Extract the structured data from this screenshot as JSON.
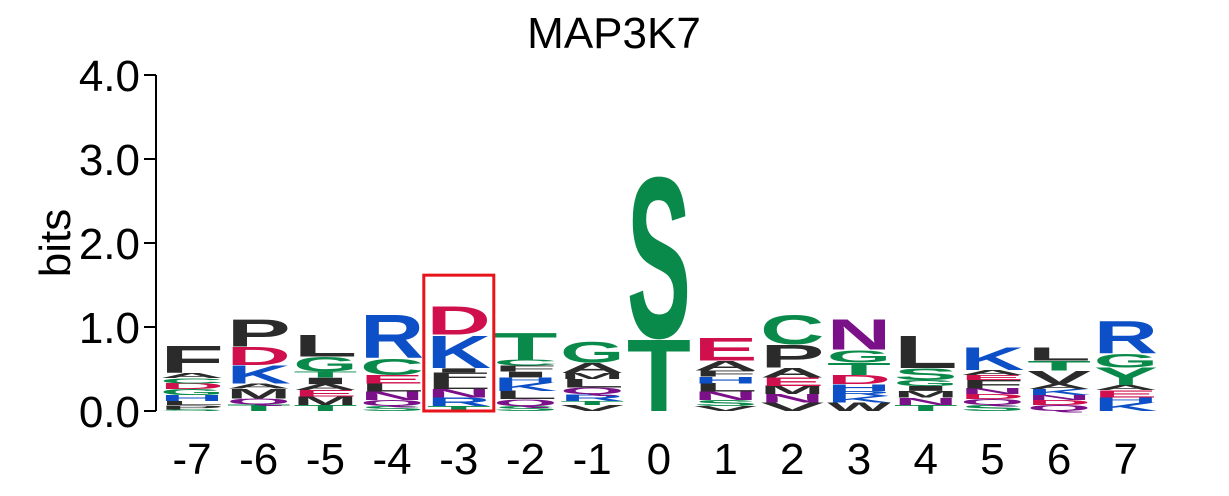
{
  "chart_data": {
    "type": "sequence-logo",
    "title": "MAP3K7",
    "ylabel": "bits",
    "ylim": [
      0,
      4.0
    ],
    "yticks": [
      {
        "value": 0,
        "label": "0.0"
      },
      {
        "value": 1,
        "label": "1.0"
      },
      {
        "value": 2,
        "label": "2.0"
      },
      {
        "value": 3,
        "label": "3.0"
      },
      {
        "value": 4,
        "label": "4.0"
      }
    ],
    "highlight_position": "-3",
    "highlight_color": "#e8141c",
    "colors": {
      "A": "#2b2b2b",
      "F": "#2b2b2b",
      "I": "#2b2b2b",
      "L": "#2b2b2b",
      "M": "#2b2b2b",
      "P": "#2b2b2b",
      "V": "#2b2b2b",
      "W": "#2b2b2b",
      "C": "#0a8a4a",
      "G": "#0a8a4a",
      "S": "#0a8a4a",
      "T": "#0a8a4a",
      "Y": "#0a8a4a",
      "D": "#d0104c",
      "E": "#d0104c",
      "H": "#0c4fc6",
      "K": "#0c4fc6",
      "R": "#0c4fc6",
      "N": "#7b1189",
      "Q": "#7b1189"
    },
    "positions": [
      {
        "label": "-7",
        "stack": [
          [
            "S",
            0.02
          ],
          [
            "P",
            0.05
          ],
          [
            "L",
            0.05
          ],
          [
            "H",
            0.07
          ],
          [
            "G",
            0.07
          ],
          [
            "D",
            0.07
          ],
          [
            "C",
            0.06
          ],
          [
            "A",
            0.06
          ],
          [
            "F",
            0.33
          ]
        ]
      },
      {
        "label": "-6",
        "stack": [
          [
            "T",
            0.08
          ],
          [
            "Q",
            0.07
          ],
          [
            "M",
            0.12
          ],
          [
            "A",
            0.06
          ],
          [
            "K",
            0.22
          ],
          [
            "D",
            0.22
          ],
          [
            "P",
            0.33
          ]
        ]
      },
      {
        "label": "-5",
        "stack": [
          [
            "T",
            0.07
          ],
          [
            "M",
            0.1
          ],
          [
            "E",
            0.08
          ],
          [
            "A",
            0.07
          ],
          [
            "I",
            0.08
          ],
          [
            "T",
            0.07
          ],
          [
            "G",
            0.18
          ],
          [
            "L",
            0.27
          ]
        ]
      },
      {
        "label": "-4",
        "stack": [
          [
            "S",
            0.06
          ],
          [
            "Q",
            0.07
          ],
          [
            "N",
            0.1
          ],
          [
            "L",
            0.1
          ],
          [
            "E",
            0.1
          ],
          [
            "C",
            0.2
          ],
          [
            "R",
            0.53
          ]
        ]
      },
      {
        "label": "-3",
        "stack": [
          [
            "T",
            0.06
          ],
          [
            "R",
            0.1
          ],
          [
            "N",
            0.1
          ],
          [
            "L",
            0.1
          ],
          [
            "F",
            0.1
          ],
          [
            "I",
            0.05
          ],
          [
            "K",
            0.4
          ],
          [
            "D",
            0.35
          ]
        ]
      },
      {
        "label": "-2",
        "stack": [
          [
            "S",
            0.06
          ],
          [
            "Q",
            0.08
          ],
          [
            "L",
            0.1
          ],
          [
            "K",
            0.1
          ],
          [
            "H",
            0.06
          ],
          [
            "I",
            0.07
          ],
          [
            "F",
            0.07
          ],
          [
            "C",
            0.07
          ],
          [
            "T",
            0.33
          ]
        ]
      },
      {
        "label": "-1",
        "stack": [
          [
            "V",
            0.07
          ],
          [
            "T",
            0.05
          ],
          [
            "R",
            0.08
          ],
          [
            "Q",
            0.08
          ],
          [
            "L",
            0.1
          ],
          [
            "M",
            0.07
          ],
          [
            "A",
            0.13
          ],
          [
            "G",
            0.25
          ]
        ]
      },
      {
        "label": "0",
        "stack": [
          [
            "T",
            0.88
          ],
          [
            "S",
            1.97
          ]
        ]
      },
      {
        "label": "1",
        "stack": [
          [
            "V",
            0.06
          ],
          [
            "S",
            0.07
          ],
          [
            "N",
            0.1
          ],
          [
            "L",
            0.1
          ],
          [
            "H",
            0.08
          ],
          [
            "F",
            0.07
          ],
          [
            "A",
            0.12
          ],
          [
            "E",
            0.28
          ]
        ]
      },
      {
        "label": "2",
        "stack": [
          [
            "V",
            0.1
          ],
          [
            "N",
            0.1
          ],
          [
            "M",
            0.1
          ],
          [
            "E",
            0.1
          ],
          [
            "A",
            0.12
          ],
          [
            "P",
            0.28
          ],
          [
            "C",
            0.36
          ]
        ]
      },
      {
        "label": "3",
        "stack": [
          [
            "W",
            0.1
          ],
          [
            "K",
            0.08
          ],
          [
            "R",
            0.06
          ],
          [
            "H",
            0.08
          ],
          [
            "D",
            0.11
          ],
          [
            "T",
            0.15
          ],
          [
            "G",
            0.15
          ],
          [
            "N",
            0.37
          ]
        ]
      },
      {
        "label": "4",
        "stack": [
          [
            "T",
            0.07
          ],
          [
            "N",
            0.09
          ],
          [
            "M",
            0.08
          ],
          [
            "I",
            0.06
          ],
          [
            "G",
            0.07
          ],
          [
            "S",
            0.14
          ],
          [
            "L",
            0.4
          ]
        ]
      },
      {
        "label": "5",
        "stack": [
          [
            "S",
            0.07
          ],
          [
            "Q",
            0.07
          ],
          [
            "D",
            0.06
          ],
          [
            "N",
            0.07
          ],
          [
            "F",
            0.1
          ],
          [
            "E",
            0.06
          ],
          [
            "A",
            0.06
          ],
          [
            "K",
            0.28
          ]
        ]
      },
      {
        "label": "6",
        "stack": [
          [
            "Q",
            0.07
          ],
          [
            "D",
            0.06
          ],
          [
            "N",
            0.06
          ],
          [
            "K",
            0.07
          ],
          [
            "A",
            0.06
          ],
          [
            "V",
            0.16
          ],
          [
            "T",
            0.12
          ],
          [
            "L",
            0.16
          ]
        ]
      },
      {
        "label": "7",
        "stack": [
          [
            "K",
            0.1
          ],
          [
            "H",
            0.06
          ],
          [
            "E",
            0.09
          ],
          [
            "A",
            0.06
          ],
          [
            "Y",
            0.21
          ],
          [
            "G",
            0.17
          ],
          [
            "R",
            0.4
          ]
        ]
      }
    ]
  }
}
